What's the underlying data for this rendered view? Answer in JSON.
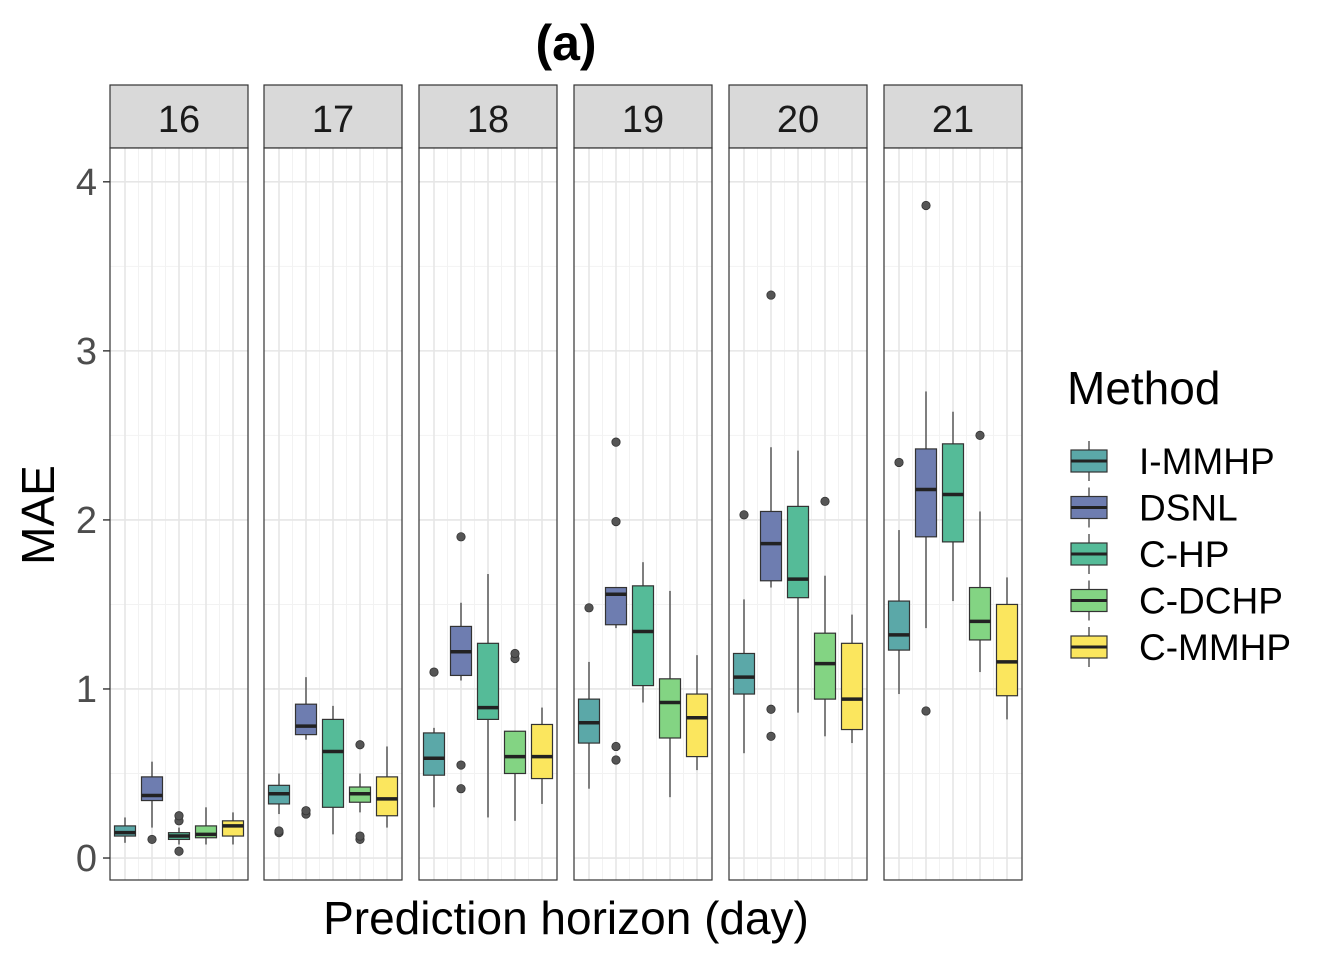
{
  "chart_data": {
    "type": "boxplot",
    "title": "(a)",
    "xlabel": "Prediction horizon (day)",
    "ylabel": "MAE",
    "ylim": [
      -0.13,
      4.2
    ],
    "yticks": [
      0,
      1,
      2,
      3,
      4
    ],
    "grid": true,
    "legend_position": "right",
    "legend_title": "Method",
    "methods": [
      {
        "name": "I-MMHP",
        "color": "#5BA8A8"
      },
      {
        "name": "DSNL",
        "color": "#6E7DB0"
      },
      {
        "name": "C-HP",
        "color": "#55BB98"
      },
      {
        "name": "C-DCHP",
        "color": "#83D483"
      },
      {
        "name": "C-MMHP",
        "color": "#FBE65E"
      }
    ],
    "facets": [
      {
        "label": "16",
        "boxes": [
          {
            "method": "I-MMHP",
            "min": 0.09,
            "q1": 0.13,
            "median": 0.15,
            "q3": 0.19,
            "max": 0.24,
            "outliers": []
          },
          {
            "method": "DSNL",
            "min": 0.18,
            "q1": 0.34,
            "median": 0.37,
            "q3": 0.48,
            "max": 0.57,
            "outliers": [
              0.11
            ]
          },
          {
            "method": "C-HP",
            "min": 0.08,
            "q1": 0.11,
            "median": 0.13,
            "q3": 0.15,
            "max": 0.18,
            "outliers": [
              0.04,
              0.22,
              0.25
            ]
          },
          {
            "method": "C-DCHP",
            "min": 0.08,
            "q1": 0.12,
            "median": 0.14,
            "q3": 0.19,
            "max": 0.3,
            "outliers": []
          },
          {
            "method": "C-MMHP",
            "min": 0.08,
            "q1": 0.13,
            "median": 0.19,
            "q3": 0.22,
            "max": 0.27,
            "outliers": []
          }
        ]
      },
      {
        "label": "17",
        "boxes": [
          {
            "method": "I-MMHP",
            "min": 0.26,
            "q1": 0.32,
            "median": 0.38,
            "q3": 0.43,
            "max": 0.5,
            "outliers": [
              0.15,
              0.16
            ]
          },
          {
            "method": "DSNL",
            "min": 0.7,
            "q1": 0.73,
            "median": 0.78,
            "q3": 0.91,
            "max": 1.07,
            "outliers": [
              0.26,
              0.28
            ]
          },
          {
            "method": "C-HP",
            "min": 0.14,
            "q1": 0.3,
            "median": 0.63,
            "q3": 0.82,
            "max": 0.9,
            "outliers": []
          },
          {
            "method": "C-DCHP",
            "min": 0.27,
            "q1": 0.33,
            "median": 0.38,
            "q3": 0.42,
            "max": 0.5,
            "outliers": [
              0.11,
              0.13,
              0.67
            ]
          },
          {
            "method": "C-MMHP",
            "min": 0.18,
            "q1": 0.25,
            "median": 0.35,
            "q3": 0.48,
            "max": 0.66,
            "outliers": []
          }
        ]
      },
      {
        "label": "18",
        "boxes": [
          {
            "method": "I-MMHP",
            "min": 0.3,
            "q1": 0.49,
            "median": 0.59,
            "q3": 0.74,
            "max": 0.77,
            "outliers": [
              1.1
            ]
          },
          {
            "method": "DSNL",
            "min": 1.05,
            "q1": 1.08,
            "median": 1.22,
            "q3": 1.37,
            "max": 1.51,
            "outliers": [
              0.41,
              0.55,
              1.9
            ]
          },
          {
            "method": "C-HP",
            "min": 0.24,
            "q1": 0.82,
            "median": 0.89,
            "q3": 1.27,
            "max": 1.68,
            "outliers": []
          },
          {
            "method": "C-DCHP",
            "min": 0.22,
            "q1": 0.5,
            "median": 0.6,
            "q3": 0.75,
            "max": 0.75,
            "outliers": [
              1.18,
              1.21
            ]
          },
          {
            "method": "C-MMHP",
            "min": 0.32,
            "q1": 0.47,
            "median": 0.6,
            "q3": 0.79,
            "max": 0.89,
            "outliers": []
          }
        ]
      },
      {
        "label": "19",
        "boxes": [
          {
            "method": "I-MMHP",
            "min": 0.41,
            "q1": 0.68,
            "median": 0.8,
            "q3": 0.94,
            "max": 1.16,
            "outliers": [
              1.48
            ]
          },
          {
            "method": "DSNL",
            "min": 1.36,
            "q1": 1.38,
            "median": 1.56,
            "q3": 1.6,
            "max": 1.6,
            "outliers": [
              0.58,
              0.66,
              1.99,
              2.46
            ]
          },
          {
            "method": "C-HP",
            "min": 0.92,
            "q1": 1.02,
            "median": 1.34,
            "q3": 1.61,
            "max": 1.75,
            "outliers": []
          },
          {
            "method": "C-DCHP",
            "min": 0.36,
            "q1": 0.71,
            "median": 0.92,
            "q3": 1.06,
            "max": 1.58,
            "outliers": []
          },
          {
            "method": "C-MMHP",
            "min": 0.52,
            "q1": 0.6,
            "median": 0.83,
            "q3": 0.97,
            "max": 1.2,
            "outliers": []
          }
        ]
      },
      {
        "label": "20",
        "boxes": [
          {
            "method": "I-MMHP",
            "min": 0.62,
            "q1": 0.97,
            "median": 1.07,
            "q3": 1.21,
            "max": 1.53,
            "outliers": [
              2.03
            ]
          },
          {
            "method": "DSNL",
            "min": 1.6,
            "q1": 1.64,
            "median": 1.86,
            "q3": 2.05,
            "max": 2.43,
            "outliers": [
              0.72,
              0.88,
              3.33
            ]
          },
          {
            "method": "C-HP",
            "min": 0.86,
            "q1": 1.54,
            "median": 1.65,
            "q3": 2.08,
            "max": 2.41,
            "outliers": []
          },
          {
            "method": "C-DCHP",
            "min": 0.72,
            "q1": 0.94,
            "median": 1.15,
            "q3": 1.33,
            "max": 1.67,
            "outliers": [
              2.11
            ]
          },
          {
            "method": "C-MMHP",
            "min": 0.68,
            "q1": 0.76,
            "median": 0.94,
            "q3": 1.27,
            "max": 1.44,
            "outliers": []
          }
        ]
      },
      {
        "label": "21",
        "boxes": [
          {
            "method": "I-MMHP",
            "min": 0.97,
            "q1": 1.23,
            "median": 1.32,
            "q3": 1.52,
            "max": 1.94,
            "outliers": [
              2.34
            ]
          },
          {
            "method": "DSNL",
            "min": 1.36,
            "q1": 1.9,
            "median": 2.18,
            "q3": 2.42,
            "max": 2.76,
            "outliers": [
              0.87,
              3.86
            ]
          },
          {
            "method": "C-HP",
            "min": 1.52,
            "q1": 1.87,
            "median": 2.15,
            "q3": 2.45,
            "max": 2.64,
            "outliers": []
          },
          {
            "method": "C-DCHP",
            "min": 1.1,
            "q1": 1.29,
            "median": 1.4,
            "q3": 1.6,
            "max": 2.05,
            "outliers": [
              2.5
            ]
          },
          {
            "method": "C-MMHP",
            "min": 0.82,
            "q1": 0.96,
            "median": 1.16,
            "q3": 1.5,
            "max": 1.66,
            "outliers": []
          }
        ]
      }
    ]
  }
}
